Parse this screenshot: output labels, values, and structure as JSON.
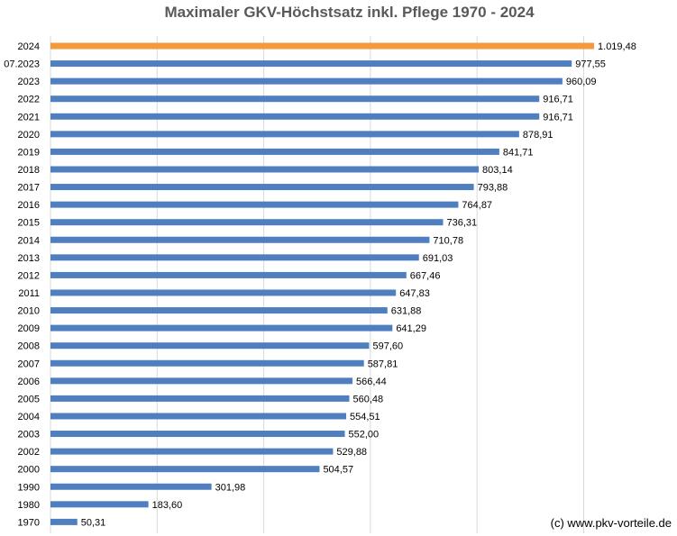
{
  "title": "Maximaler GKV-Höchstsatz inkl. Pflege 1970 - 2024",
  "credit": "(c) www.pkv-vorteile.de",
  "colors": {
    "highlight": "#F29A3D",
    "bar": "#4F7FBF",
    "grid": "#D9D9D9"
  },
  "chart_data": {
    "type": "bar",
    "orientation": "horizontal",
    "title": "Maximaler GKV-Höchstsatz inkl. Pflege 1970 - 2024",
    "grid": true,
    "xlim": [
      0,
      1200
    ],
    "xgrid_step": 200,
    "categories": [
      "2024",
      "07.2023",
      "2023",
      "2022",
      "2021",
      "2020",
      "2019",
      "2018",
      "2017",
      "2016",
      "2015",
      "2014",
      "2013",
      "2012",
      "2011",
      "2010",
      "2009",
      "2008",
      "2007",
      "2006",
      "2005",
      "2004",
      "2003",
      "2002",
      "2000",
      "1990",
      "1980",
      "1970"
    ],
    "values": [
      1019.48,
      977.55,
      960.09,
      916.71,
      916.71,
      878.91,
      841.71,
      803.14,
      793.88,
      764.87,
      736.31,
      710.78,
      691.03,
      667.46,
      647.83,
      631.88,
      641.29,
      597.6,
      587.81,
      566.44,
      560.48,
      554.51,
      552.0,
      529.88,
      504.57,
      301.98,
      183.6,
      50.31
    ],
    "data_labels": [
      "1.019,48",
      "977,55",
      "960,09",
      "916,71",
      "916,71",
      "878,91",
      "841,71",
      "803,14",
      "793,88",
      "764,87",
      "736,31",
      "710,78",
      "691,03",
      "667,46",
      "647,83",
      "631,88",
      "641,29",
      "597,60",
      "587,81",
      "566,44",
      "560,48",
      "554,51",
      "552,00",
      "529,88",
      "504,57",
      "301,98",
      "183,60",
      "50,31"
    ],
    "highlight_category": "2024"
  }
}
